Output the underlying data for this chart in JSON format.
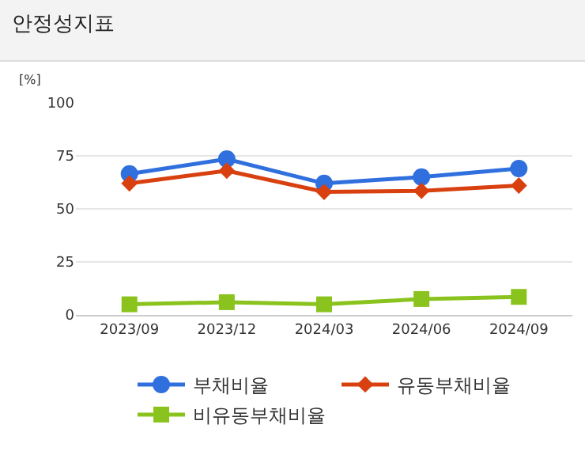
{
  "chart_data": {
    "type": "line",
    "title": "안정성지표",
    "ylabel": "[%]",
    "categories": [
      "2023/09",
      "2023/12",
      "2024/03",
      "2024/06",
      "2024/09"
    ],
    "series": [
      {
        "name": "부채비율",
        "color": "#2f6fde",
        "marker": "circle",
        "values": [
          66.5,
          73.5,
          62,
          65,
          69
        ]
      },
      {
        "name": "유동부채비율",
        "color": "#d9400f",
        "marker": "diamond",
        "values": [
          62,
          68,
          58,
          58.5,
          61
        ]
      },
      {
        "name": "비유동부채비율",
        "color": "#8ac31e",
        "marker": "square",
        "values": [
          5,
          6,
          5,
          7.5,
          8.5
        ]
      }
    ],
    "ylim": [
      0,
      100
    ],
    "yticks": [
      0,
      25,
      50,
      75,
      100
    ],
    "grid": "y",
    "legend": "bottom"
  }
}
